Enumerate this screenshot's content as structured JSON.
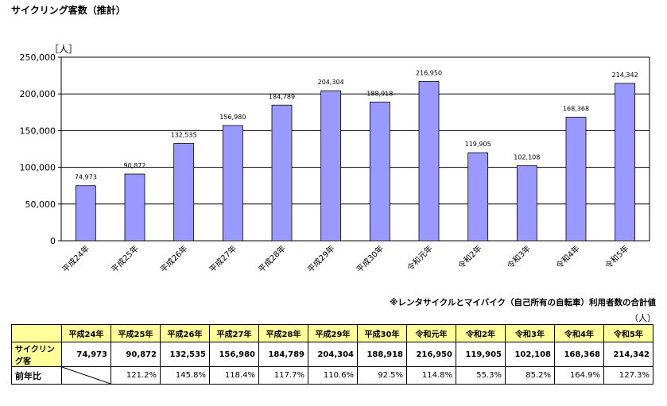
{
  "title": "サイクリング客数（推計）",
  "note": "※レンタサイクルとマイバイク（自己所有の自転車）利用者数の合計値",
  "table_unit": "（人）",
  "table": {
    "row_visitors_label": "サイクリング客",
    "row_yoy_label": "前年比",
    "yoy": [
      "",
      "121.2%",
      "145.8%",
      "118.4%",
      "117.7%",
      "110.6%",
      "92.5%",
      "114.8%",
      "55.3%",
      "85.2%",
      "164.9%",
      "127.3%"
    ]
  },
  "colors": {
    "bar": "#9999ff",
    "bar_border": "#000000",
    "header_bg": "#ffff99"
  },
  "chart_data": {
    "type": "bar",
    "categories": [
      "平成24年",
      "平成25年",
      "平成26年",
      "平成27年",
      "平成28年",
      "平成29年",
      "平成30年",
      "令和元年",
      "令和2年",
      "令和3年",
      "令和4年",
      "令和5年"
    ],
    "values": [
      74973,
      90872,
      132535,
      156980,
      184789,
      204304,
      188918,
      216950,
      119905,
      102108,
      168368,
      214342
    ],
    "data_labels": [
      "74,973",
      "90,872",
      "132,535",
      "156,980",
      "184,789",
      "204,304",
      "188,918",
      "216,950",
      "119,905",
      "102,108",
      "168,368",
      "214,342"
    ],
    "ylabel": "［人］",
    "ylim": [
      0,
      250000
    ],
    "yticks": [
      0,
      50000,
      100000,
      150000,
      200000,
      250000
    ],
    "ytick_labels": [
      "0",
      "50,000",
      "100,000",
      "150,000",
      "200,000",
      "250,000"
    ],
    "grid": true,
    "legend": "none"
  }
}
